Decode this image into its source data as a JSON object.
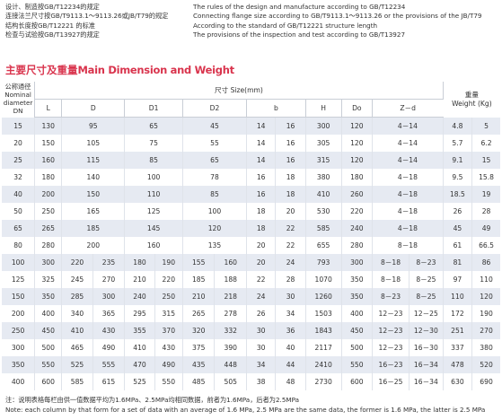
{
  "intro": {
    "cn": [
      "设计、制造按GB/T12234的规定",
      "连接法兰尺寸按GB/T9113.1～9113.26或JB/T79的规定",
      "结构长度按GB/T12221 的标准",
      "检查与试验按GB/T13927的规定"
    ],
    "en": [
      "The rules of the design and manufacture according to GB/T12234",
      "Connecting flange size according to GB/T9113.1～9113.26 or the provisions of the JB/T79",
      "According to the standard of GB/T12221 structure length",
      "The provisions of the inspection and test according to GB/T13927"
    ]
  },
  "section_title": {
    "cn": "主要尺寸及重量",
    "en": "Main Dimension and Weight"
  },
  "table": {
    "header": {
      "nominal_cn": "公称通径",
      "nominal_en1": "Nominal",
      "nominal_en2": "diameter",
      "nominal_dn": "DN",
      "size_group": "尺寸 Size(mm)",
      "weight_cn": "重量",
      "weight_en": "Weight (Kg)",
      "cols": {
        "L": "L",
        "D": "D",
        "D1": "D1",
        "D2": "D2",
        "b": "b",
        "H": "H",
        "Do": "Do",
        "Zd": "Z－d"
      }
    },
    "rows_a": [
      [
        "15",
        "130",
        "95",
        "65",
        "45",
        "14",
        "16",
        "300",
        "120",
        "4－14",
        "4.8",
        "5"
      ],
      [
        "20",
        "150",
        "105",
        "75",
        "55",
        "14",
        "16",
        "305",
        "120",
        "4－14",
        "5.7",
        "6.2"
      ],
      [
        "25",
        "160",
        "115",
        "85",
        "65",
        "14",
        "16",
        "315",
        "120",
        "4－14",
        "9.1",
        "15"
      ],
      [
        "32",
        "180",
        "140",
        "100",
        "78",
        "16",
        "18",
        "380",
        "180",
        "4－18",
        "9.5",
        "15.8"
      ],
      [
        "40",
        "200",
        "150",
        "110",
        "85",
        "16",
        "18",
        "410",
        "260",
        "4－18",
        "18.5",
        "19"
      ],
      [
        "50",
        "250",
        "165",
        "125",
        "100",
        "18",
        "20",
        "530",
        "220",
        "4－18",
        "26",
        "28"
      ],
      [
        "65",
        "265",
        "185",
        "145",
        "120",
        "18",
        "22",
        "585",
        "240",
        "4－18",
        "45",
        "49"
      ],
      [
        "80",
        "280",
        "200",
        "160",
        "135",
        "20",
        "22",
        "655",
        "280",
        "8－18",
        "61",
        "66.5"
      ]
    ],
    "rows_b": [
      [
        "100",
        "300",
        "220",
        "235",
        "180",
        "190",
        "155",
        "160",
        "20",
        "24",
        "793",
        "300",
        "8－18",
        "8－23",
        "81",
        "86"
      ],
      [
        "125",
        "325",
        "245",
        "270",
        "210",
        "220",
        "185",
        "188",
        "22",
        "28",
        "1070",
        "350",
        "8－18",
        "8－25",
        "97",
        "110"
      ],
      [
        "150",
        "350",
        "285",
        "300",
        "240",
        "250",
        "210",
        "218",
        "24",
        "30",
        "1260",
        "350",
        "8－23",
        "8－25",
        "110",
        "120"
      ],
      [
        "200",
        "400",
        "340",
        "365",
        "295",
        "315",
        "265",
        "278",
        "26",
        "34",
        "1503",
        "400",
        "12－23",
        "12－25",
        "172",
        "190"
      ],
      [
        "250",
        "450",
        "410",
        "430",
        "355",
        "370",
        "320",
        "332",
        "30",
        "36",
        "1843",
        "450",
        "12－23",
        "12－30",
        "251",
        "270"
      ],
      [
        "300",
        "500",
        "465",
        "490",
        "410",
        "430",
        "375",
        "390",
        "30",
        "40",
        "2117",
        "500",
        "12－23",
        "16－30",
        "337",
        "380"
      ],
      [
        "350",
        "550",
        "525",
        "555",
        "470",
        "490",
        "435",
        "448",
        "34",
        "44",
        "2410",
        "550",
        "16－23",
        "16－34",
        "478",
        "520"
      ],
      [
        "400",
        "600",
        "585",
        "615",
        "525",
        "550",
        "485",
        "505",
        "38",
        "48",
        "2730",
        "600",
        "16－25",
        "16－34",
        "630",
        "690"
      ]
    ]
  },
  "notes": [
    "注：说明表格每栏由供一值数据平均为1.6MPa、2.5MPa均相同数据，前者为1.6MPa，后者为2.5MPa",
    "Note: each column by that form for a set of data with an average of 1.6 MPa, 2.5 MPa are the same data, the former is 1.6 MPa, the latter is 2.5 MPa"
  ]
}
